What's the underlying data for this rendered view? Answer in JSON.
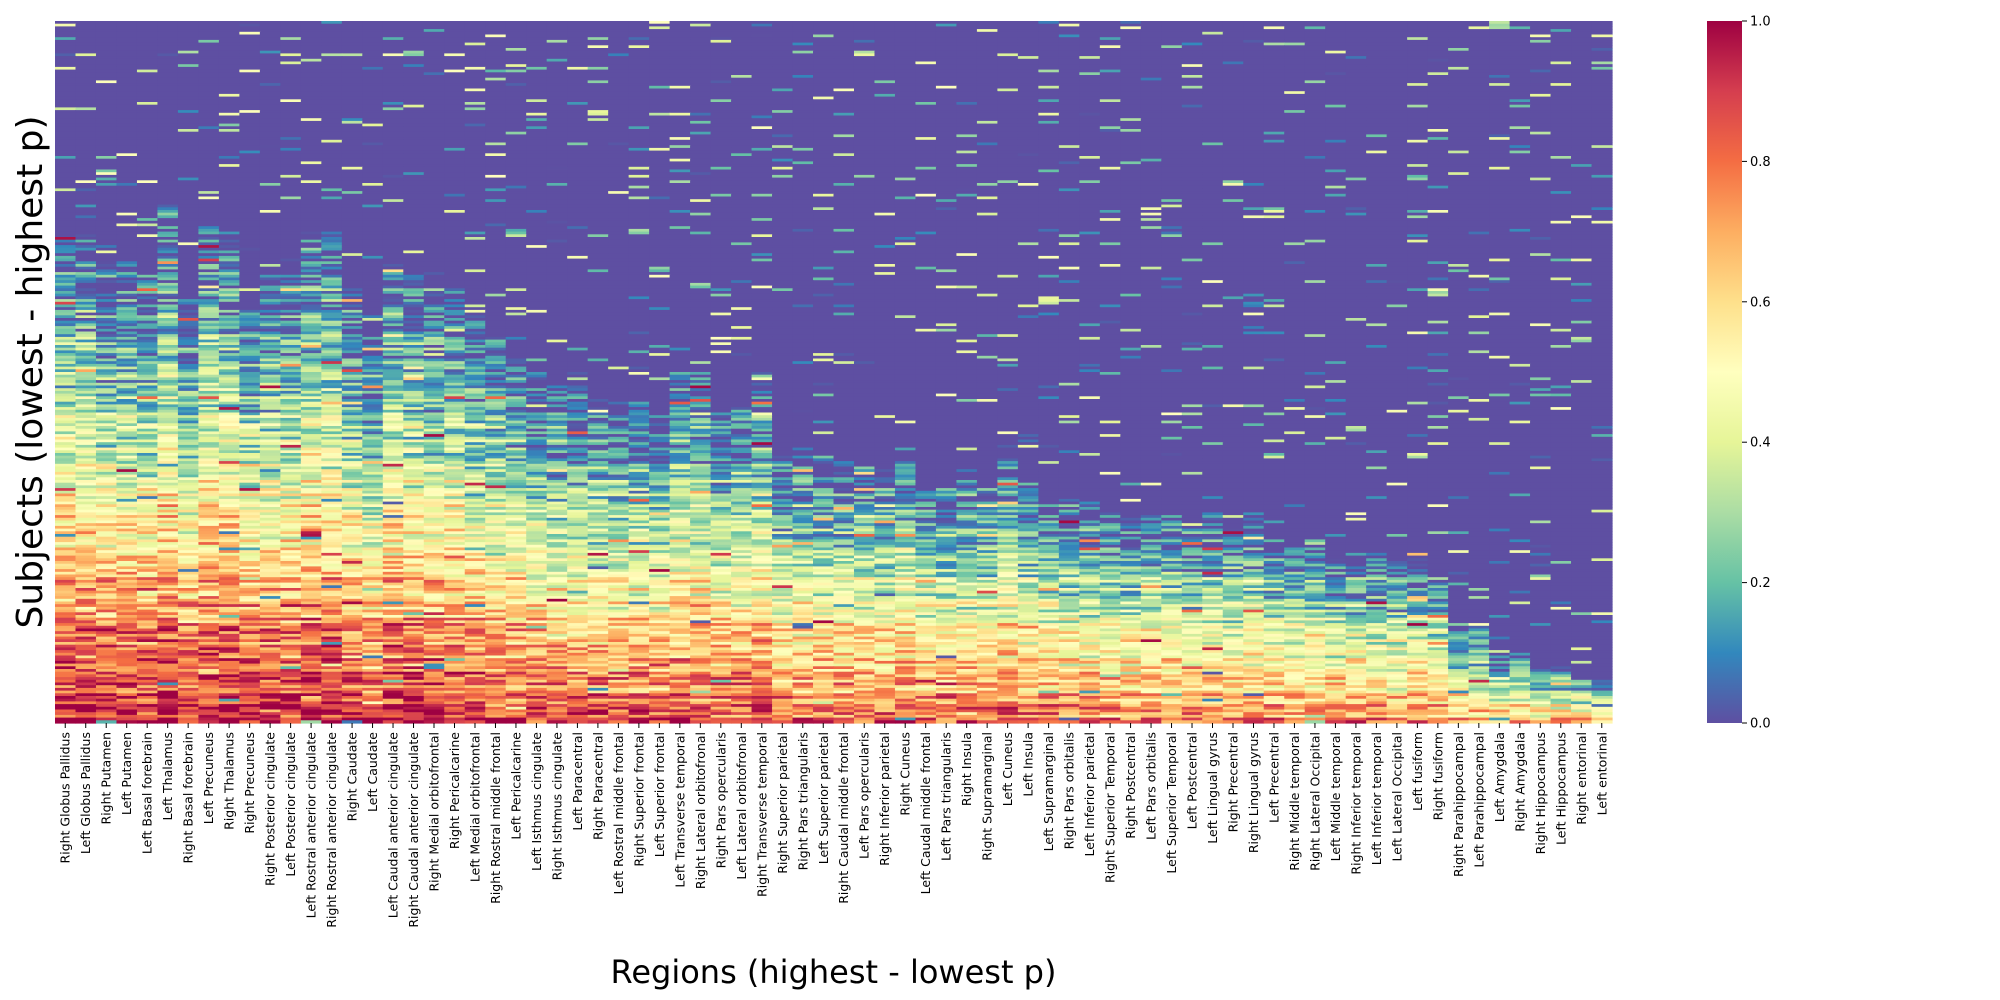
{
  "chart_data": {
    "type": "heatmap",
    "xlabel": "Regions (highest - lowest p)",
    "ylabel": "Subjects (lowest - highest p)",
    "categories": [
      "Right Globus Pallidus",
      "Left Globus Pallidus",
      "Right Putamen",
      "Left Putamen",
      "Left Basal forebrain",
      "Left Thalamus",
      "Right Basal forebrain",
      "Left Precuneus",
      "Right Thalamus",
      "Right Precuneus",
      "Right Posterior cingulate",
      "Left Posterior cingulate",
      "Left Rostral anterior cingulate",
      "Right Rostral anterior cingulate",
      "Right Caudate",
      "Left Caudate",
      "Left Caudal anterior cingulate",
      "Right Caudal anterior cingulate",
      "Right Medial orbitofrontal",
      "Right Pericalcarine",
      "Left Medial orbitofrontal",
      "Right Rostral middle frontal",
      "Left Pericalcarine",
      "Left Isthmus cingulate",
      "Right Isthmus cingulate",
      "Left Paracentral",
      "Right Paracentral",
      "Left Rostral middle frontal",
      "Right Superior frontal",
      "Left Superior frontal",
      "Left Transverse temporal",
      "Right Lateral orbitofronal",
      "Right Pars opercularis",
      "Left Lateral orbitofronal",
      "Right Transverse temporal",
      "Right Superior parietal",
      "Right Pars triangularis",
      "Left Superior parietal",
      "Right Caudal middle frontal",
      "Left Pars opercularis",
      "Right Inferior parietal",
      "Right Cuneus",
      "Left Caudal middle frontal",
      "Left Pars triangularis",
      "Right Insula",
      "Right Supramarginal",
      "Left Cuneus",
      "Left Insula",
      "Left Supramarginal",
      "Right Pars orbitalis",
      "Left Inferior parietal",
      "Right Superior Temporal",
      "Right Postcentral",
      "Left Pars orbitalis",
      "Left Superior Temporal",
      "Left Postcentral",
      "Left Lingual gyrus",
      "Right Precentral",
      "Right Lingual gyrus",
      "Left Precentral",
      "Right Middle temporal",
      "Right Lateral Occipital",
      "Left Middle temporal",
      "Right Inferior temporal",
      "Left Inferior temporal",
      "Left Lateral Occipital",
      "Left fusiform",
      "Right fusiform",
      "Right Parahippocampal",
      "Left Parahippocampal",
      "Left Amygdala",
      "Right Amygdala",
      "Right Hippocampus",
      "Left Hippocampus",
      "Right entorinal",
      "Left entorinal"
    ],
    "region_level": [
      0.7,
      0.7,
      0.66,
      0.66,
      0.64,
      0.74,
      0.6,
      0.72,
      0.7,
      0.62,
      0.64,
      0.64,
      0.7,
      0.7,
      0.62,
      0.54,
      0.66,
      0.64,
      0.62,
      0.62,
      0.58,
      0.56,
      0.52,
      0.5,
      0.48,
      0.48,
      0.46,
      0.46,
      0.46,
      0.44,
      0.5,
      0.5,
      0.44,
      0.46,
      0.5,
      0.38,
      0.4,
      0.38,
      0.38,
      0.38,
      0.36,
      0.4,
      0.34,
      0.34,
      0.36,
      0.34,
      0.4,
      0.34,
      0.32,
      0.32,
      0.32,
      0.3,
      0.3,
      0.3,
      0.3,
      0.28,
      0.3,
      0.28,
      0.3,
      0.26,
      0.26,
      0.26,
      0.24,
      0.24,
      0.24,
      0.24,
      0.24,
      0.22,
      0.14,
      0.14,
      0.1,
      0.1,
      0.08,
      0.08,
      0.06,
      0.06
    ],
    "n_subjects": 260,
    "colorbar": {
      "min": 0.0,
      "max": 1.0,
      "ticks": [
        "0.0",
        "0.2",
        "0.4",
        "0.6",
        "0.8",
        "1.0"
      ],
      "colormap": "Spectral_r"
    },
    "grid": false,
    "legend_placement": "right (colorbar)"
  }
}
